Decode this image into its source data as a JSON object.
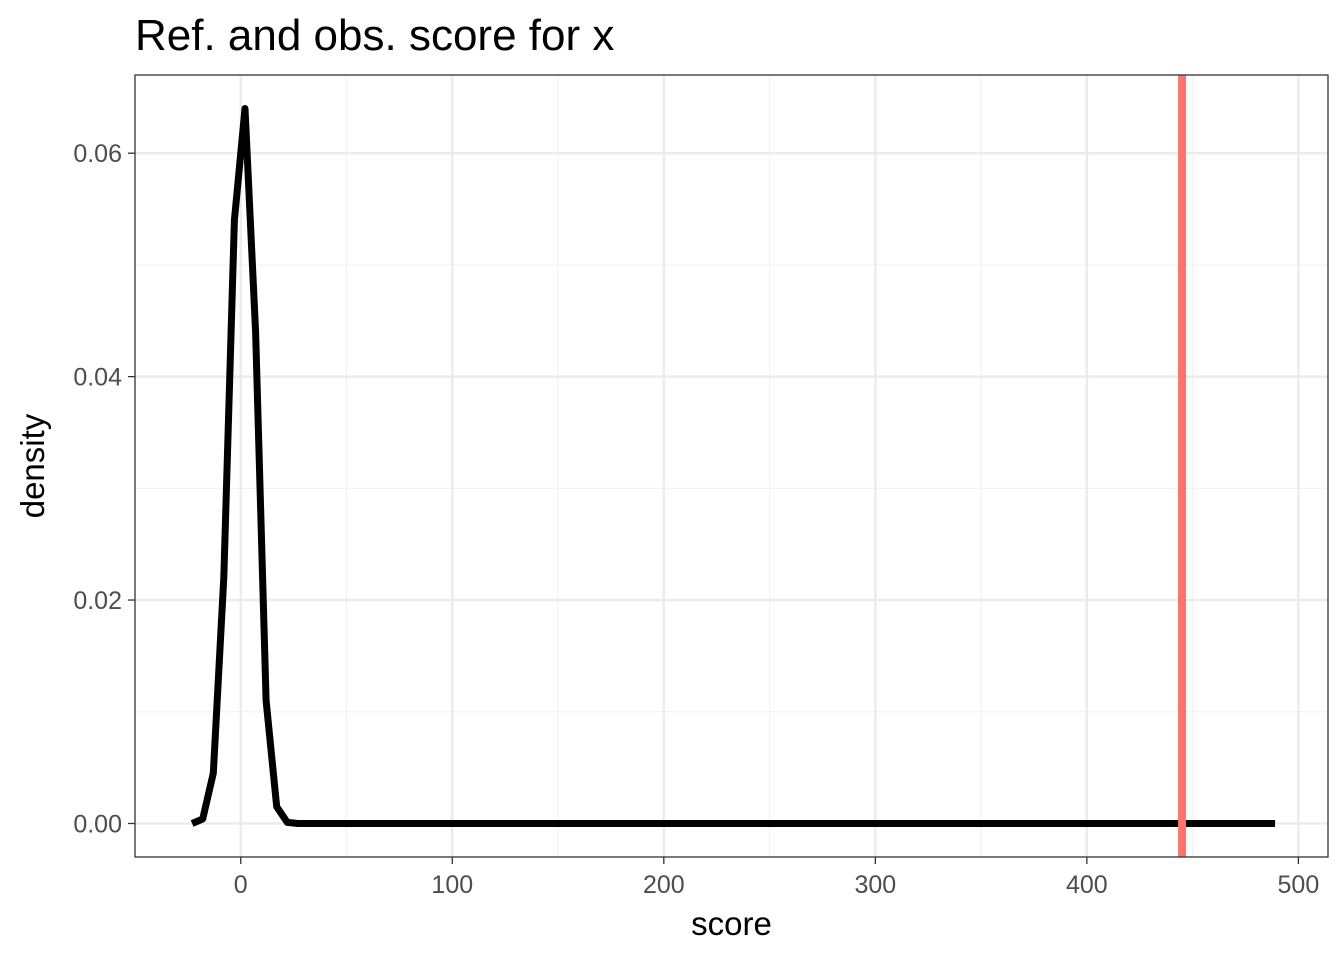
{
  "chart_data": {
    "type": "line",
    "title": "Ref. and obs. score for x",
    "xlabel": "score",
    "ylabel": "density",
    "xlim": [
      -50,
      514
    ],
    "ylim": [
      -0.003,
      0.067
    ],
    "x_ticks": [
      0,
      100,
      200,
      300,
      400,
      500
    ],
    "x_tick_labels": [
      "0",
      "100",
      "200",
      "300",
      "400",
      "500"
    ],
    "y_ticks": [
      0,
      0.02,
      0.04,
      0.06
    ],
    "y_tick_labels": [
      "0.00",
      "0.02",
      "0.04",
      "0.06"
    ],
    "x_minor_ticks": [
      50,
      150,
      250,
      350,
      450
    ],
    "y_minor_ticks": [
      0.01,
      0.03,
      0.05
    ],
    "grid": true,
    "series": [
      {
        "color": "#000000",
        "x": [
          -23,
          -18,
          -13,
          -8,
          -3,
          2,
          7,
          12,
          17,
          22,
          27,
          32,
          40,
          60,
          100,
          150,
          200,
          250,
          300,
          350,
          400,
          450,
          489
        ],
        "y": [
          0,
          0.0004,
          0.0045,
          0.022,
          0.054,
          0.064,
          0.044,
          0.011,
          0.0015,
          0.0001,
          0,
          0,
          0,
          0,
          0,
          0,
          0,
          0,
          0,
          0,
          0,
          0,
          0
        ]
      }
    ],
    "observed_line": {
      "x": 445,
      "color": "#f8766d"
    }
  }
}
